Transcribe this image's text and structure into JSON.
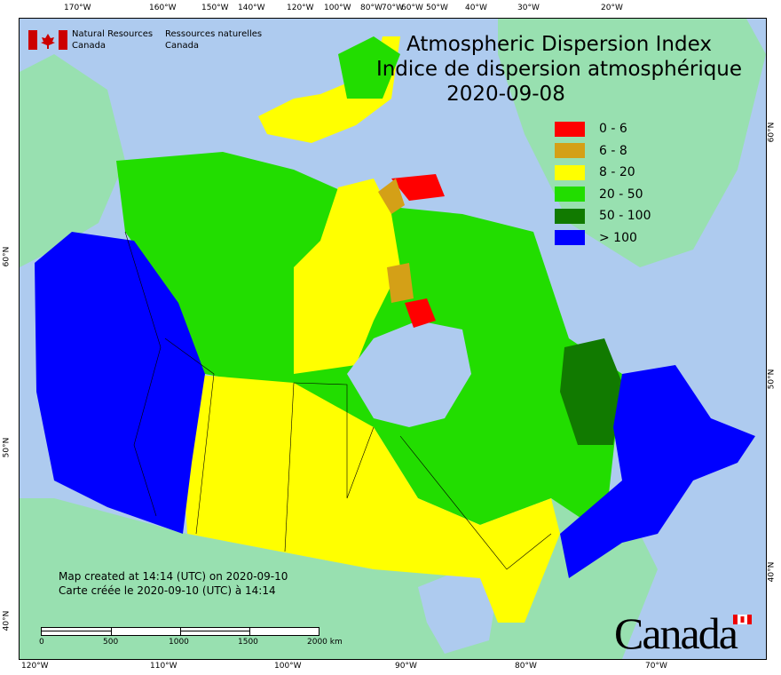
{
  "header": {
    "org_en": [
      "Natural Resources",
      "Canada"
    ],
    "org_fr": [
      "Ressources naturelles",
      "Canada"
    ],
    "title_en": "Atmospheric Dispersion Index",
    "title_fr": "Indice de dispersion atmosphérique",
    "date": "2020-09-08"
  },
  "legend": [
    {
      "label": "0 - 6",
      "color": "#ff0000"
    },
    {
      "label": "6 - 8",
      "color": "#d4a017"
    },
    {
      "label": "8 - 20",
      "color": "#ffff00"
    },
    {
      "label": "20 - 50",
      "color": "#22dd00"
    },
    {
      "label": "50 - 100",
      "color": "#117a00"
    },
    {
      "label": "> 100",
      "color": "#0000ff"
    }
  ],
  "axes": {
    "top": [
      "170°W",
      "160°W",
      "150°W",
      "140°W",
      "120°W",
      "100°W",
      "80°W",
      "70°W",
      "60°W",
      "50°W",
      "40°W",
      "30°W",
      "20°W"
    ],
    "bottom": [
      "120°W",
      "110°W",
      "100°W",
      "90°W",
      "80°W",
      "70°W"
    ],
    "left": [
      "60°N",
      "50°N",
      "40°N"
    ],
    "right": [
      "60°N",
      "50°N",
      "40°N"
    ]
  },
  "credit": {
    "line_en": "Map created at 14:14 (UTC) on 2020-09-10",
    "line_fr": "Carte créée le 2020-09-10 (UTC) à 14:14"
  },
  "scale_bar": {
    "labels": [
      "0",
      "500",
      "1000",
      "1500",
      "2000 km"
    ]
  },
  "wordmark": "Canada",
  "colors": {
    "water": "#aecbef",
    "land_outside": "#98e0b0"
  }
}
